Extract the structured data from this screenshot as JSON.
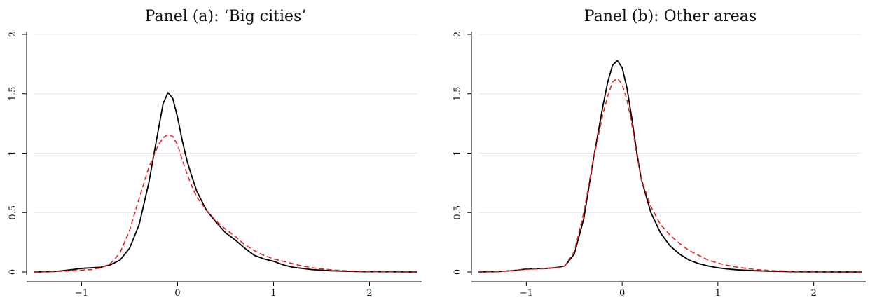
{
  "chart_data": [
    {
      "type": "line",
      "title": "Panel (a): ‘Big cities’",
      "xlabel": "",
      "ylabel": "",
      "xlim": [
        -1.5,
        2.5
      ],
      "ylim": [
        0,
        2
      ],
      "xticks": [
        -1,
        0,
        1,
        2
      ],
      "xtick_labels": [
        "−1",
        "0",
        "1",
        "2"
      ],
      "yticks": [
        0,
        0.5,
        1,
        1.5,
        2
      ],
      "ytick_labels": [
        "0",
        "0.5",
        "1",
        "1.5",
        "2"
      ],
      "grid": "horizontal",
      "series": [
        {
          "color": "#000000",
          "style": "solid",
          "points": [
            [
              -1.5,
              0.0
            ],
            [
              -1.3,
              0.003
            ],
            [
              -1.2,
              0.01
            ],
            [
              -1.1,
              0.02
            ],
            [
              -1.0,
              0.03
            ],
            [
              -0.9,
              0.035
            ],
            [
              -0.8,
              0.04
            ],
            [
              -0.7,
              0.06
            ],
            [
              -0.6,
              0.1
            ],
            [
              -0.5,
              0.2
            ],
            [
              -0.4,
              0.4
            ],
            [
              -0.3,
              0.75
            ],
            [
              -0.2,
              1.2
            ],
            [
              -0.15,
              1.42
            ],
            [
              -0.1,
              1.51
            ],
            [
              -0.05,
              1.46
            ],
            [
              0.0,
              1.3
            ],
            [
              0.05,
              1.1
            ],
            [
              0.1,
              0.93
            ],
            [
              0.15,
              0.8
            ],
            [
              0.2,
              0.68
            ],
            [
              0.3,
              0.52
            ],
            [
              0.4,
              0.42
            ],
            [
              0.5,
              0.33
            ],
            [
              0.6,
              0.27
            ],
            [
              0.7,
              0.2
            ],
            [
              0.8,
              0.14
            ],
            [
              0.9,
              0.11
            ],
            [
              1.0,
              0.09
            ],
            [
              1.1,
              0.06
            ],
            [
              1.2,
              0.04
            ],
            [
              1.3,
              0.03
            ],
            [
              1.4,
              0.02
            ],
            [
              1.6,
              0.01
            ],
            [
              1.8,
              0.005
            ],
            [
              2.0,
              0.002
            ],
            [
              2.5,
              0.0
            ]
          ]
        },
        {
          "color": "#e8201f",
          "style": "dashed",
          "points": [
            [
              -1.5,
              0.0
            ],
            [
              -1.3,
              0.002
            ],
            [
              -1.2,
              0.006
            ],
            [
              -1.1,
              0.01
            ],
            [
              -1.0,
              0.015
            ],
            [
              -0.9,
              0.02
            ],
            [
              -0.8,
              0.035
            ],
            [
              -0.7,
              0.07
            ],
            [
              -0.6,
              0.16
            ],
            [
              -0.5,
              0.35
            ],
            [
              -0.4,
              0.62
            ],
            [
              -0.3,
              0.88
            ],
            [
              -0.2,
              1.07
            ],
            [
              -0.15,
              1.13
            ],
            [
              -0.1,
              1.16
            ],
            [
              -0.05,
              1.14
            ],
            [
              0.0,
              1.07
            ],
            [
              0.05,
              0.94
            ],
            [
              0.1,
              0.82
            ],
            [
              0.15,
              0.72
            ],
            [
              0.2,
              0.63
            ],
            [
              0.3,
              0.52
            ],
            [
              0.4,
              0.43
            ],
            [
              0.5,
              0.36
            ],
            [
              0.6,
              0.3
            ],
            [
              0.7,
              0.23
            ],
            [
              0.8,
              0.18
            ],
            [
              0.9,
              0.14
            ],
            [
              1.0,
              0.11
            ],
            [
              1.1,
              0.09
            ],
            [
              1.2,
              0.07
            ],
            [
              1.3,
              0.05
            ],
            [
              1.4,
              0.035
            ],
            [
              1.6,
              0.018
            ],
            [
              1.8,
              0.008
            ],
            [
              2.0,
              0.003
            ],
            [
              2.5,
              0.0
            ]
          ]
        }
      ]
    },
    {
      "type": "line",
      "title": "Panel (b): Other areas",
      "xlabel": "",
      "ylabel": "",
      "xlim": [
        -1.5,
        2.5
      ],
      "ylim": [
        0,
        2
      ],
      "xticks": [
        -1,
        0,
        1,
        2
      ],
      "xtick_labels": [
        "−1",
        "0",
        "1",
        "2"
      ],
      "yticks": [
        0,
        0.5,
        1,
        1.5,
        2
      ],
      "ytick_labels": [
        "0",
        "0.5",
        "1",
        "1.5",
        "2"
      ],
      "grid": "horizontal",
      "series": [
        {
          "color": "#000000",
          "style": "solid",
          "points": [
            [
              -1.5,
              0.0
            ],
            [
              -1.3,
              0.003
            ],
            [
              -1.2,
              0.008
            ],
            [
              -1.1,
              0.015
            ],
            [
              -1.0,
              0.025
            ],
            [
              -0.9,
              0.028
            ],
            [
              -0.8,
              0.03
            ],
            [
              -0.7,
              0.035
            ],
            [
              -0.6,
              0.05
            ],
            [
              -0.5,
              0.15
            ],
            [
              -0.4,
              0.45
            ],
            [
              -0.3,
              0.95
            ],
            [
              -0.2,
              1.4
            ],
            [
              -0.15,
              1.6
            ],
            [
              -0.1,
              1.74
            ],
            [
              -0.05,
              1.78
            ],
            [
              0.0,
              1.72
            ],
            [
              0.05,
              1.55
            ],
            [
              0.1,
              1.3
            ],
            [
              0.15,
              1.02
            ],
            [
              0.2,
              0.78
            ],
            [
              0.3,
              0.5
            ],
            [
              0.4,
              0.33
            ],
            [
              0.5,
              0.22
            ],
            [
              0.6,
              0.15
            ],
            [
              0.7,
              0.1
            ],
            [
              0.8,
              0.07
            ],
            [
              0.9,
              0.05
            ],
            [
              1.0,
              0.035
            ],
            [
              1.1,
              0.025
            ],
            [
              1.2,
              0.018
            ],
            [
              1.4,
              0.01
            ],
            [
              1.6,
              0.005
            ],
            [
              1.8,
              0.002
            ],
            [
              2.0,
              0.001
            ],
            [
              2.5,
              0.0
            ]
          ]
        },
        {
          "color": "#e8201f",
          "style": "dashed",
          "points": [
            [
              -1.5,
              0.0
            ],
            [
              -1.3,
              0.003
            ],
            [
              -1.2,
              0.008
            ],
            [
              -1.1,
              0.015
            ],
            [
              -1.0,
              0.022
            ],
            [
              -0.9,
              0.025
            ],
            [
              -0.8,
              0.028
            ],
            [
              -0.7,
              0.033
            ],
            [
              -0.6,
              0.05
            ],
            [
              -0.5,
              0.17
            ],
            [
              -0.4,
              0.5
            ],
            [
              -0.3,
              0.95
            ],
            [
              -0.2,
              1.33
            ],
            [
              -0.15,
              1.48
            ],
            [
              -0.1,
              1.6
            ],
            [
              -0.05,
              1.63
            ],
            [
              0.0,
              1.58
            ],
            [
              0.05,
              1.45
            ],
            [
              0.1,
              1.25
            ],
            [
              0.15,
              1.0
            ],
            [
              0.2,
              0.78
            ],
            [
              0.3,
              0.55
            ],
            [
              0.4,
              0.4
            ],
            [
              0.5,
              0.31
            ],
            [
              0.6,
              0.24
            ],
            [
              0.7,
              0.18
            ],
            [
              0.8,
              0.14
            ],
            [
              0.9,
              0.1
            ],
            [
              1.0,
              0.075
            ],
            [
              1.1,
              0.055
            ],
            [
              1.2,
              0.04
            ],
            [
              1.3,
              0.03
            ],
            [
              1.4,
              0.02
            ],
            [
              1.6,
              0.01
            ],
            [
              1.8,
              0.005
            ],
            [
              2.0,
              0.002
            ],
            [
              2.5,
              0.0
            ]
          ]
        }
      ]
    }
  ]
}
